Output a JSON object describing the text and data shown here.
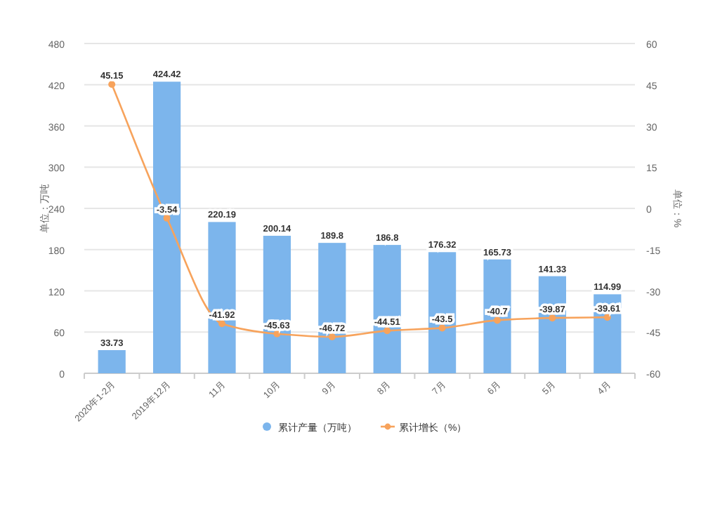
{
  "chart_data": {
    "type": "bar",
    "categories": [
      "2020年1-2月",
      "2019年12月",
      "11月",
      "10月",
      "9月",
      "8月",
      "7月",
      "6月",
      "5月",
      "4月"
    ],
    "series": [
      {
        "name": "累计产量（万吨）",
        "color": "#7cb5ec",
        "values": [
          33.73,
          424.42,
          220.19,
          200.14,
          189.8,
          186.8,
          176.32,
          165.73,
          141.33,
          114.99
        ]
      },
      {
        "name": "累计增长（%）",
        "type": "line",
        "axis": "y2",
        "color": "#f7a35c",
        "marker": "circle",
        "values": [
          45.15,
          -3.54,
          -41.92,
          -45.63,
          -46.72,
          -44.51,
          -43.5,
          -40.7,
          -39.87,
          -39.61
        ]
      }
    ],
    "ylabel": "单位：万吨",
    "y2label": "单位：%",
    "ylim": [
      0,
      480
    ],
    "yticks": [
      0,
      60,
      120,
      180,
      240,
      300,
      360,
      420,
      480
    ],
    "y2lim": [
      -60,
      60
    ],
    "y2ticks": [
      -60,
      -45,
      -30,
      -15,
      0,
      15,
      30,
      45,
      60
    ],
    "grid": "y",
    "legend": "bottom",
    "data_labels": true
  }
}
